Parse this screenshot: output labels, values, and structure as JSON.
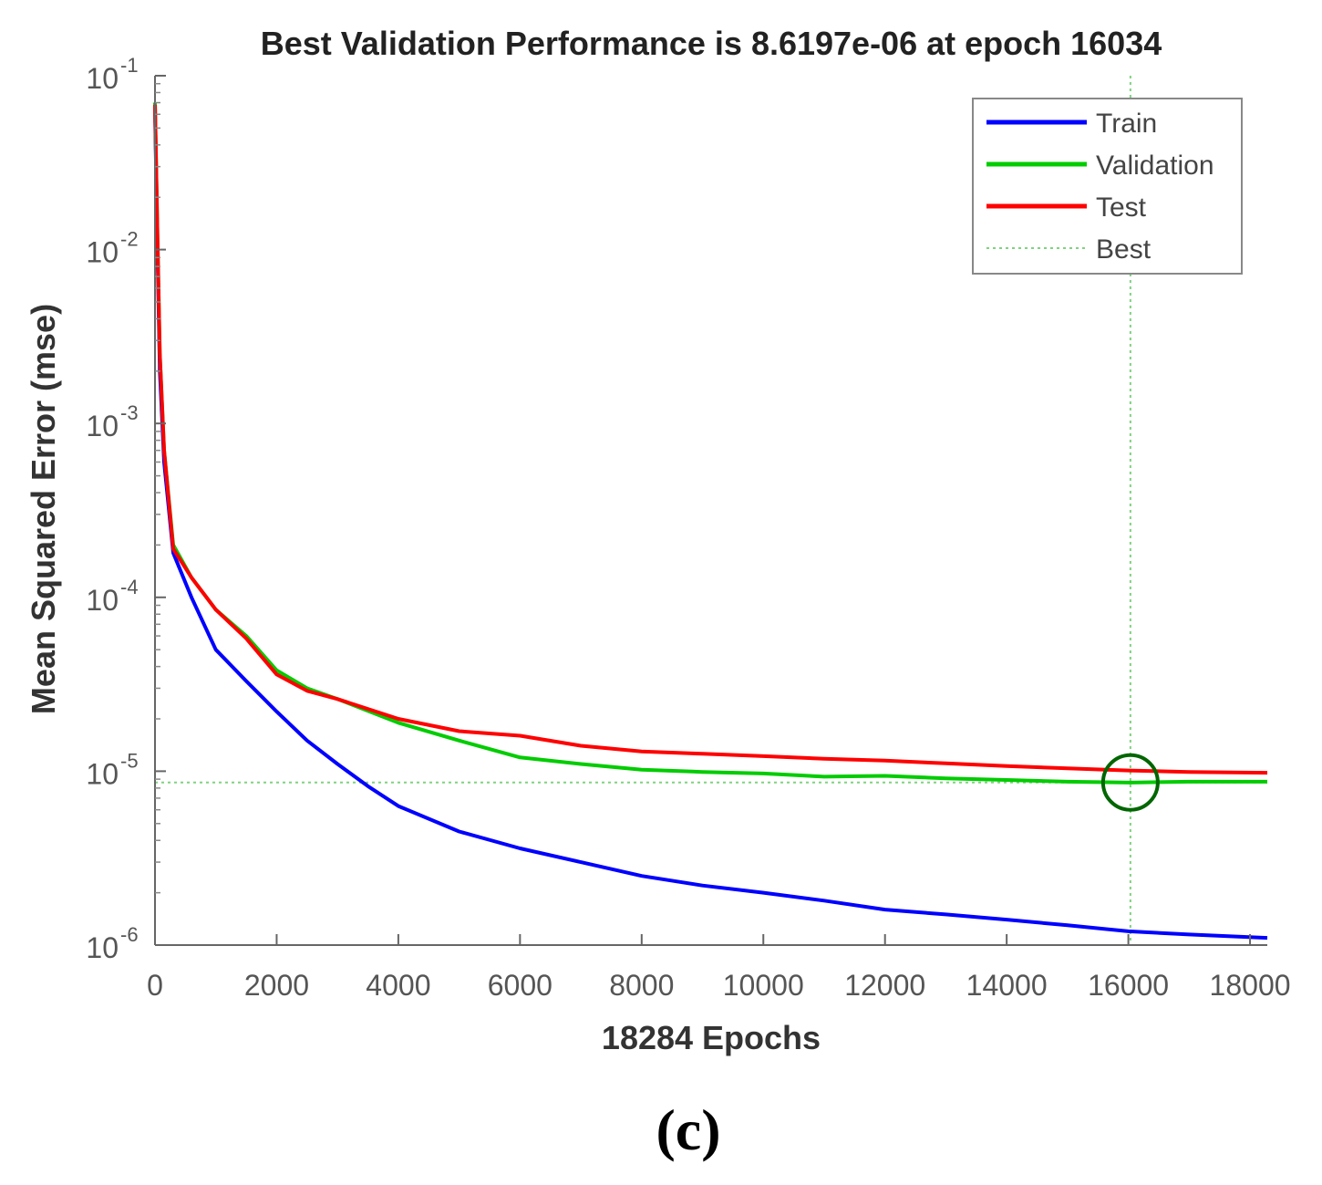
{
  "caption": "(c)",
  "chart_data": {
    "type": "line",
    "title": "Best Validation Performance is 8.6197e-06 at epoch 16034",
    "xlabel": "18284 Epochs",
    "ylabel": "Mean Squared Error  (mse)",
    "xlim": [
      0,
      18284
    ],
    "ylim": [
      1e-06,
      0.1
    ],
    "yscale": "log",
    "x_ticks": [
      0,
      2000,
      4000,
      6000,
      8000,
      10000,
      12000,
      14000,
      16000,
      18000
    ],
    "y_ticks": [
      {
        "value": 1e-06,
        "base": "10",
        "exp": "-6"
      },
      {
        "value": 1e-05,
        "base": "10",
        "exp": "-5"
      },
      {
        "value": 0.0001,
        "base": "10",
        "exp": "-4"
      },
      {
        "value": 0.001,
        "base": "10",
        "exp": "-3"
      },
      {
        "value": 0.01,
        "base": "10",
        "exp": "-2"
      },
      {
        "value": 0.1,
        "base": "10",
        "exp": "-1"
      }
    ],
    "legend_position": "top-right",
    "series": [
      {
        "name": "Train",
        "color": "#0000ff",
        "points": [
          [
            0,
            0.065
          ],
          [
            40,
            0.01
          ],
          [
            80,
            0.002
          ],
          [
            150,
            0.0006
          ],
          [
            300,
            0.00018
          ],
          [
            600,
            0.0001
          ],
          [
            1000,
            5e-05
          ],
          [
            1500,
            3.3e-05
          ],
          [
            2000,
            2.2e-05
          ],
          [
            2500,
            1.5e-05
          ],
          [
            3000,
            1.1e-05
          ],
          [
            3500,
            8.2e-06
          ],
          [
            4000,
            6.3e-06
          ],
          [
            5000,
            4.5e-06
          ],
          [
            6000,
            3.6e-06
          ],
          [
            7000,
            3e-06
          ],
          [
            8000,
            2.5e-06
          ],
          [
            9000,
            2.2e-06
          ],
          [
            10000,
            2e-06
          ],
          [
            11000,
            1.8e-06
          ],
          [
            12000,
            1.6e-06
          ],
          [
            13000,
            1.5e-06
          ],
          [
            14000,
            1.4e-06
          ],
          [
            15000,
            1.3e-06
          ],
          [
            16000,
            1.2e-06
          ],
          [
            17000,
            1.15e-06
          ],
          [
            18284,
            1.1e-06
          ]
        ]
      },
      {
        "name": "Validation",
        "color": "#00cc00",
        "points": [
          [
            0,
            0.07
          ],
          [
            40,
            0.012
          ],
          [
            80,
            0.0025
          ],
          [
            150,
            0.0007
          ],
          [
            300,
            0.0002
          ],
          [
            600,
            0.00013
          ],
          [
            1000,
            8.5e-05
          ],
          [
            1500,
            6e-05
          ],
          [
            2000,
            3.8e-05
          ],
          [
            2500,
            3e-05
          ],
          [
            3000,
            2.6e-05
          ],
          [
            4000,
            1.9e-05
          ],
          [
            5000,
            1.5e-05
          ],
          [
            6000,
            1.2e-05
          ],
          [
            7000,
            1.1e-05
          ],
          [
            8000,
            1.02e-05
          ],
          [
            9000,
            9.9e-06
          ],
          [
            10000,
            9.7e-06
          ],
          [
            11000,
            9.3e-06
          ],
          [
            12000,
            9.4e-06
          ],
          [
            13000,
            9.1e-06
          ],
          [
            14000,
            8.9e-06
          ],
          [
            15000,
            8.7e-06
          ],
          [
            16034,
            8.6e-06
          ],
          [
            17000,
            8.7e-06
          ],
          [
            18284,
            8.7e-06
          ]
        ]
      },
      {
        "name": "Test",
        "color": "#ff0000",
        "points": [
          [
            0,
            0.068
          ],
          [
            40,
            0.012
          ],
          [
            80,
            0.0025
          ],
          [
            150,
            0.0007
          ],
          [
            300,
            0.00019
          ],
          [
            600,
            0.00013
          ],
          [
            1000,
            8.5e-05
          ],
          [
            1500,
            5.8e-05
          ],
          [
            2000,
            3.6e-05
          ],
          [
            2500,
            2.9e-05
          ],
          [
            3000,
            2.6e-05
          ],
          [
            4000,
            2e-05
          ],
          [
            5000,
            1.7e-05
          ],
          [
            6000,
            1.6e-05
          ],
          [
            7000,
            1.4e-05
          ],
          [
            8000,
            1.3e-05
          ],
          [
            9000,
            1.26e-05
          ],
          [
            10000,
            1.22e-05
          ],
          [
            11000,
            1.18e-05
          ],
          [
            12000,
            1.15e-05
          ],
          [
            13000,
            1.11e-05
          ],
          [
            14000,
            1.07e-05
          ],
          [
            15000,
            1.04e-05
          ],
          [
            16000,
            1.01e-05
          ],
          [
            17000,
            9.9e-06
          ],
          [
            18284,
            9.8e-06
          ]
        ]
      }
    ],
    "best": {
      "name": "Best",
      "epoch": 16034,
      "value": 8.6197e-06,
      "color": "#00aa00",
      "marker_color": "#006600"
    }
  }
}
